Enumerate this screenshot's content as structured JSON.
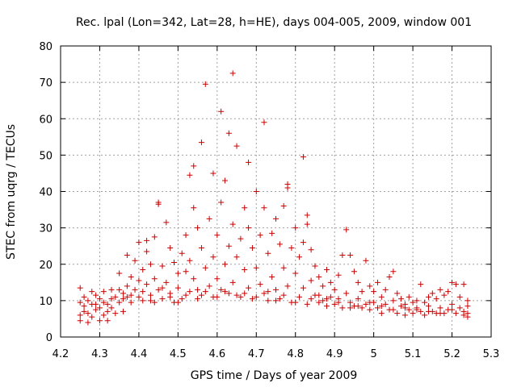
{
  "chart_data": {
    "type": "scatter",
    "title": "Rec. lpal (Lon=342, Lat=28, h=HE), days 004-005, 2009, window 001",
    "xlabel": "GPS time / Days of year 2009",
    "ylabel": "STEC from uqrg / TECUs",
    "xlim": [
      4.2,
      5.3
    ],
    "ylim": [
      0,
      80
    ],
    "xticks": [
      "4.2",
      "4.3",
      "4.4",
      "4.5",
      "4.6",
      "4.7",
      "4.8",
      "4.9",
      "5",
      "5.1",
      "5.2",
      "5.3"
    ],
    "yticks": [
      "0",
      "10",
      "20",
      "30",
      "40",
      "50",
      "60",
      "70",
      "80"
    ],
    "grid": true,
    "marker": "+",
    "color": "#cc0000",
    "series": [
      {
        "name": "STEC",
        "points": [
          [
            4.25,
            13.5
          ],
          [
            4.25,
            9.5
          ],
          [
            4.25,
            6.0
          ],
          [
            4.25,
            4.5
          ],
          [
            4.26,
            11.0
          ],
          [
            4.26,
            8.5
          ],
          [
            4.27,
            10.0
          ],
          [
            4.27,
            6.5
          ],
          [
            4.27,
            4.0
          ],
          [
            4.28,
            12.5
          ],
          [
            4.28,
            9.0
          ],
          [
            4.28,
            5.5
          ],
          [
            4.29,
            11.5
          ],
          [
            4.29,
            7.5
          ],
          [
            4.3,
            10.5
          ],
          [
            4.3,
            8.0
          ],
          [
            4.3,
            4.5
          ],
          [
            4.31,
            12.5
          ],
          [
            4.31,
            6.0
          ],
          [
            4.32,
            9.0
          ],
          [
            4.32,
            7.0
          ],
          [
            4.32,
            4.5
          ],
          [
            4.33,
            13.0
          ],
          [
            4.33,
            8.0
          ],
          [
            4.34,
            11.0
          ],
          [
            4.34,
            6.5
          ],
          [
            4.35,
            17.5
          ],
          [
            4.35,
            13.0
          ],
          [
            4.35,
            9.5
          ],
          [
            4.36,
            10.5
          ],
          [
            4.36,
            7.0
          ],
          [
            4.37,
            22.5
          ],
          [
            4.37,
            14.0
          ],
          [
            4.37,
            11.0
          ],
          [
            4.38,
            16.5
          ],
          [
            4.38,
            9.5
          ],
          [
            4.39,
            21.0
          ],
          [
            4.39,
            13.0
          ],
          [
            4.4,
            26.0
          ],
          [
            4.4,
            15.5
          ],
          [
            4.4,
            11.0
          ],
          [
            4.41,
            18.5
          ],
          [
            4.41,
            10.0
          ],
          [
            4.42,
            26.5
          ],
          [
            4.42,
            23.5
          ],
          [
            4.42,
            14.5
          ],
          [
            4.43,
            20.0
          ],
          [
            4.43,
            11.5
          ],
          [
            4.44,
            27.5
          ],
          [
            4.44,
            16.0
          ],
          [
            4.44,
            9.5
          ],
          [
            4.45,
            37.0
          ],
          [
            4.45,
            36.5
          ],
          [
            4.45,
            13.0
          ],
          [
            4.46,
            19.5
          ],
          [
            4.46,
            10.5
          ],
          [
            4.47,
            31.5
          ],
          [
            4.47,
            15.0
          ],
          [
            4.48,
            24.5
          ],
          [
            4.48,
            12.0
          ],
          [
            4.49,
            20.5
          ],
          [
            4.49,
            9.5
          ],
          [
            4.5,
            17.5
          ],
          [
            4.5,
            13.5
          ],
          [
            4.51,
            23.0
          ],
          [
            4.51,
            10.5
          ],
          [
            4.52,
            28.0
          ],
          [
            4.52,
            18.0
          ],
          [
            4.53,
            44.5
          ],
          [
            4.53,
            21.0
          ],
          [
            4.53,
            12.5
          ],
          [
            4.54,
            47.0
          ],
          [
            4.54,
            35.5
          ],
          [
            4.54,
            16.0
          ],
          [
            4.55,
            30.0
          ],
          [
            4.55,
            13.0
          ],
          [
            4.56,
            53.5
          ],
          [
            4.56,
            24.5
          ],
          [
            4.56,
            11.5
          ],
          [
            4.57,
            69.5
          ],
          [
            4.57,
            19.0
          ],
          [
            4.58,
            32.5
          ],
          [
            4.58,
            14.0
          ],
          [
            4.59,
            45.0
          ],
          [
            4.59,
            22.0
          ],
          [
            4.59,
            11.0
          ],
          [
            4.6,
            28.0
          ],
          [
            4.6,
            16.0
          ],
          [
            4.61,
            62.0
          ],
          [
            4.61,
            37.0
          ],
          [
            4.61,
            13.0
          ],
          [
            4.62,
            43.0
          ],
          [
            4.62,
            20.0
          ],
          [
            4.63,
            56.0
          ],
          [
            4.63,
            25.0
          ],
          [
            4.63,
            12.0
          ],
          [
            4.64,
            72.5
          ],
          [
            4.64,
            31.0
          ],
          [
            4.64,
            15.0
          ],
          [
            4.65,
            52.5
          ],
          [
            4.65,
            22.0
          ],
          [
            4.66,
            27.0
          ],
          [
            4.66,
            11.0
          ],
          [
            4.67,
            35.5
          ],
          [
            4.67,
            18.5
          ],
          [
            4.68,
            48.0
          ],
          [
            4.68,
            30.0
          ],
          [
            4.68,
            13.5
          ],
          [
            4.69,
            24.5
          ],
          [
            4.69,
            10.5
          ],
          [
            4.7,
            40.0
          ],
          [
            4.7,
            19.0
          ],
          [
            4.71,
            28.0
          ],
          [
            4.71,
            14.5
          ],
          [
            4.72,
            59.0
          ],
          [
            4.72,
            35.5
          ],
          [
            4.72,
            12.0
          ],
          [
            4.73,
            23.0
          ],
          [
            4.73,
            10.0
          ],
          [
            4.74,
            28.5
          ],
          [
            4.74,
            16.5
          ],
          [
            4.75,
            32.5
          ],
          [
            4.75,
            13.0
          ],
          [
            4.76,
            25.5
          ],
          [
            4.76,
            10.5
          ],
          [
            4.77,
            36.0
          ],
          [
            4.77,
            19.0
          ],
          [
            4.78,
            42.0
          ],
          [
            4.78,
            41.0
          ],
          [
            4.78,
            14.0
          ],
          [
            4.79,
            24.5
          ],
          [
            4.79,
            9.5
          ],
          [
            4.8,
            30.0
          ],
          [
            4.8,
            17.5
          ],
          [
            4.81,
            22.0
          ],
          [
            4.81,
            11.0
          ],
          [
            4.82,
            49.5
          ],
          [
            4.82,
            26.0
          ],
          [
            4.82,
            13.5
          ],
          [
            4.83,
            33.5
          ],
          [
            4.83,
            31.0
          ],
          [
            4.83,
            9.0
          ],
          [
            4.84,
            24.0
          ],
          [
            4.84,
            15.5
          ],
          [
            4.85,
            19.5
          ],
          [
            4.85,
            11.5
          ],
          [
            4.86,
            16.5
          ],
          [
            4.86,
            9.5
          ],
          [
            4.87,
            14.0
          ],
          [
            4.87,
            10.0
          ],
          [
            4.88,
            18.5
          ],
          [
            4.88,
            8.5
          ],
          [
            4.89,
            15.0
          ],
          [
            4.89,
            11.0
          ],
          [
            4.9,
            13.0
          ],
          [
            4.9,
            9.0
          ],
          [
            4.91,
            17.0
          ],
          [
            4.91,
            10.5
          ],
          [
            4.92,
            22.5
          ],
          [
            4.92,
            8.0
          ],
          [
            4.93,
            29.5
          ],
          [
            4.93,
            12.0
          ],
          [
            4.94,
            22.5
          ],
          [
            4.94,
            9.5
          ],
          [
            4.95,
            18.0
          ],
          [
            4.95,
            8.5
          ],
          [
            4.96,
            15.0
          ],
          [
            4.96,
            10.5
          ],
          [
            4.97,
            12.5
          ],
          [
            4.97,
            8.0
          ],
          [
            4.98,
            21.0
          ],
          [
            4.98,
            9.0
          ],
          [
            4.99,
            14.0
          ],
          [
            4.99,
            7.5
          ],
          [
            5.0,
            12.5
          ],
          [
            5.0,
            9.5
          ],
          [
            5.01,
            15.0
          ],
          [
            5.01,
            8.0
          ],
          [
            5.02,
            11.0
          ],
          [
            5.02,
            6.5
          ],
          [
            5.03,
            13.0
          ],
          [
            5.03,
            9.0
          ],
          [
            5.04,
            16.5
          ],
          [
            5.04,
            7.5
          ],
          [
            5.05,
            18.0
          ],
          [
            5.05,
            10.0
          ],
          [
            5.06,
            12.0
          ],
          [
            5.06,
            6.5
          ],
          [
            5.07,
            10.5
          ],
          [
            5.07,
            8.5
          ],
          [
            5.08,
            9.0
          ],
          [
            5.08,
            6.0
          ],
          [
            5.09,
            11.0
          ],
          [
            5.09,
            7.5
          ],
          [
            5.1,
            9.5
          ],
          [
            5.1,
            6.5
          ],
          [
            5.11,
            10.0
          ],
          [
            5.11,
            8.0
          ],
          [
            5.12,
            14.5
          ],
          [
            5.12,
            7.0
          ],
          [
            5.13,
            9.5
          ],
          [
            5.13,
            6.0
          ],
          [
            5.14,
            11.0
          ],
          [
            5.14,
            8.5
          ],
          [
            5.15,
            12.0
          ],
          [
            5.15,
            7.0
          ],
          [
            5.16,
            10.5
          ],
          [
            5.16,
            6.5
          ],
          [
            5.17,
            13.0
          ],
          [
            5.17,
            8.0
          ],
          [
            5.18,
            11.5
          ],
          [
            5.18,
            6.5
          ],
          [
            5.19,
            12.5
          ],
          [
            5.19,
            7.5
          ],
          [
            5.2,
            15.0
          ],
          [
            5.2,
            9.0
          ],
          [
            5.21,
            14.5
          ],
          [
            5.21,
            6.5
          ],
          [
            5.22,
            11.0
          ],
          [
            5.22,
            8.0
          ],
          [
            5.23,
            14.5
          ],
          [
            5.23,
            7.0
          ],
          [
            5.24,
            10.0
          ],
          [
            5.24,
            5.5
          ],
          [
            5.24,
            8.5
          ],
          [
            5.24,
            6.5
          ],
          [
            4.26,
            7.0
          ],
          [
            4.29,
            9.0
          ],
          [
            4.31,
            9.5
          ],
          [
            4.33,
            10.5
          ],
          [
            4.36,
            12.0
          ],
          [
            4.38,
            11.5
          ],
          [
            4.41,
            12.5
          ],
          [
            4.43,
            10.0
          ],
          [
            4.46,
            13.5
          ],
          [
            4.48,
            11.0
          ],
          [
            4.5,
            9.5
          ],
          [
            4.52,
            11.5
          ],
          [
            4.55,
            10.5
          ],
          [
            4.57,
            12.5
          ],
          [
            4.6,
            11.0
          ],
          [
            4.62,
            12.5
          ],
          [
            4.65,
            11.5
          ],
          [
            4.67,
            12.0
          ],
          [
            4.7,
            11.0
          ],
          [
            4.73,
            12.5
          ],
          [
            4.75,
            10.0
          ],
          [
            4.77,
            11.5
          ],
          [
            4.8,
            9.5
          ],
          [
            4.84,
            10.5
          ],
          [
            4.86,
            11.5
          ],
          [
            4.88,
            10.5
          ],
          [
            4.91,
            9.5
          ],
          [
            4.94,
            8.0
          ],
          [
            4.96,
            8.5
          ],
          [
            4.99,
            9.5
          ],
          [
            5.02,
            8.5
          ],
          [
            5.05,
            7.5
          ],
          [
            5.08,
            8.0
          ],
          [
            5.11,
            7.5
          ],
          [
            5.14,
            7.0
          ],
          [
            5.17,
            6.5
          ],
          [
            5.2,
            7.5
          ],
          [
            5.23,
            6.0
          ]
        ]
      }
    ]
  }
}
